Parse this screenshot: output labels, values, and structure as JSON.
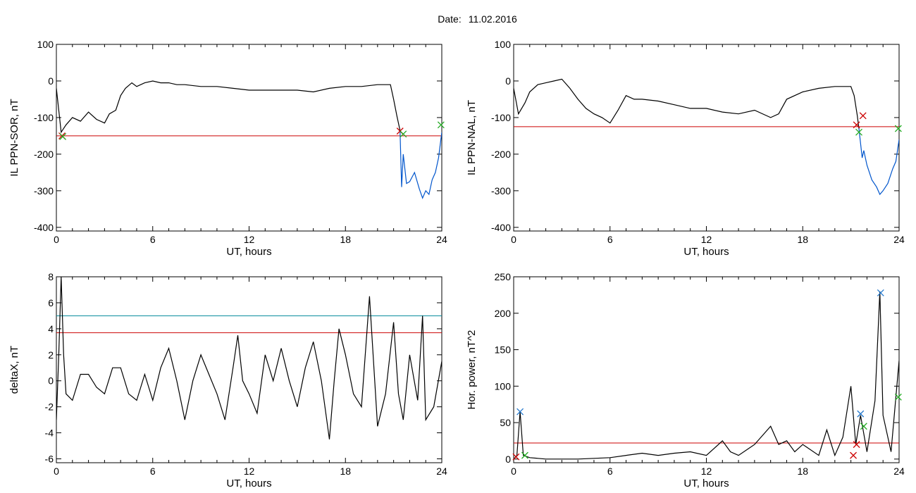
{
  "header": {
    "date_label": "Date:",
    "date_value": "11.02.2016"
  },
  "chart_data": [
    {
      "id": "p1",
      "type": "line",
      "xlabel": "UT, hours",
      "ylabel": "IL PPN-SOR, nT",
      "xlim": [
        0,
        24
      ],
      "ylim": [
        -410,
        100
      ],
      "xticks": [
        0,
        6,
        12,
        18,
        24
      ],
      "yticks": [
        100,
        0,
        -100,
        -200,
        -300,
        -400
      ],
      "series": [
        {
          "color": "#000000",
          "points": [
            [
              0,
              -20
            ],
            [
              0.3,
              -140
            ],
            [
              0.6,
              -120
            ],
            [
              1,
              -100
            ],
            [
              1.5,
              -110
            ],
            [
              2,
              -85
            ],
            [
              2.5,
              -105
            ],
            [
              3,
              -115
            ],
            [
              3.3,
              -90
            ],
            [
              3.7,
              -80
            ],
            [
              4,
              -40
            ],
            [
              4.3,
              -20
            ],
            [
              4.7,
              -5
            ],
            [
              5,
              -15
            ],
            [
              5.5,
              -5
            ],
            [
              6,
              0
            ],
            [
              6.5,
              -5
            ],
            [
              7,
              -5
            ],
            [
              7.5,
              -10
            ],
            [
              8,
              -10
            ],
            [
              9,
              -15
            ],
            [
              10,
              -15
            ],
            [
              11,
              -20
            ],
            [
              12,
              -25
            ],
            [
              13,
              -25
            ],
            [
              14,
              -25
            ],
            [
              15,
              -25
            ],
            [
              16,
              -30
            ],
            [
              17,
              -20
            ],
            [
              18,
              -15
            ],
            [
              19,
              -15
            ],
            [
              20,
              -10
            ],
            [
              20.8,
              -10
            ],
            [
              21,
              -50
            ],
            [
              21.2,
              -95
            ],
            [
              21.4,
              -135
            ]
          ]
        },
        {
          "color": "#0055cc",
          "points": [
            [
              21.4,
              -135
            ],
            [
              21.5,
              -290
            ],
            [
              21.6,
              -200
            ],
            [
              21.8,
              -280
            ],
            [
              22,
              -275
            ],
            [
              22.3,
              -250
            ],
            [
              22.6,
              -295
            ],
            [
              22.8,
              -320
            ],
            [
              23,
              -300
            ],
            [
              23.2,
              -310
            ],
            [
              23.4,
              -270
            ],
            [
              23.6,
              -250
            ],
            [
              23.8,
              -210
            ],
            [
              24,
              -140
            ]
          ]
        }
      ],
      "hlines": [
        {
          "value": -150,
          "color": "#cc0000"
        }
      ],
      "markers": [
        {
          "x": 0.35,
          "y": -150,
          "color": "#cc0000"
        },
        {
          "x": 0.4,
          "y": -152,
          "color": "#22aa22"
        },
        {
          "x": 21.4,
          "y": -137,
          "color": "#cc0000"
        },
        {
          "x": 21.6,
          "y": -145,
          "color": "#22aa22"
        },
        {
          "x": 23.95,
          "y": -120,
          "color": "#22aa22"
        }
      ]
    },
    {
      "id": "p2",
      "type": "line",
      "xlabel": "UT, hours",
      "ylabel": "IL PPN-NAL, nT",
      "xlim": [
        0,
        24
      ],
      "ylim": [
        -410,
        100
      ],
      "xticks": [
        0,
        6,
        12,
        18,
        24
      ],
      "yticks": [
        100,
        0,
        -100,
        -200,
        -300,
        -400
      ],
      "series": [
        {
          "color": "#000000",
          "points": [
            [
              0,
              -20
            ],
            [
              0.3,
              -90
            ],
            [
              0.7,
              -60
            ],
            [
              1,
              -30
            ],
            [
              1.5,
              -10
            ],
            [
              2,
              -5
            ],
            [
              2.5,
              0
            ],
            [
              3,
              5
            ],
            [
              3.5,
              -20
            ],
            [
              4,
              -50
            ],
            [
              4.5,
              -75
            ],
            [
              5,
              -90
            ],
            [
              5.5,
              -100
            ],
            [
              6,
              -115
            ],
            [
              6.5,
              -80
            ],
            [
              7,
              -40
            ],
            [
              7.5,
              -50
            ],
            [
              8,
              -50
            ],
            [
              9,
              -55
            ],
            [
              10,
              -65
            ],
            [
              11,
              -75
            ],
            [
              12,
              -75
            ],
            [
              13,
              -85
            ],
            [
              14,
              -90
            ],
            [
              15,
              -80
            ],
            [
              16,
              -100
            ],
            [
              16.5,
              -90
            ],
            [
              17,
              -50
            ],
            [
              18,
              -30
            ],
            [
              19,
              -20
            ],
            [
              20,
              -15
            ],
            [
              21,
              -15
            ],
            [
              21.2,
              -40
            ],
            [
              21.4,
              -95
            ],
            [
              21.5,
              -130
            ]
          ]
        },
        {
          "color": "#0055cc",
          "points": [
            [
              21.5,
              -130
            ],
            [
              21.7,
              -210
            ],
            [
              21.8,
              -190
            ],
            [
              22,
              -230
            ],
            [
              22.3,
              -270
            ],
            [
              22.6,
              -290
            ],
            [
              22.8,
              -310
            ],
            [
              23,
              -300
            ],
            [
              23.3,
              -280
            ],
            [
              23.6,
              -240
            ],
            [
              23.8,
              -220
            ],
            [
              24,
              -160
            ]
          ]
        }
      ],
      "hlines": [
        {
          "value": -125,
          "color": "#cc0000"
        }
      ],
      "markers": [
        {
          "x": 21.35,
          "y": -120,
          "color": "#cc0000"
        },
        {
          "x": 21.5,
          "y": -140,
          "color": "#22aa22"
        },
        {
          "x": 21.75,
          "y": -95,
          "color": "#cc0000"
        },
        {
          "x": 23.95,
          "y": -130,
          "color": "#22aa22"
        }
      ]
    },
    {
      "id": "p3",
      "type": "line",
      "xlabel": "UT, hours",
      "ylabel": "deltaX, nT",
      "xlim": [
        0,
        24
      ],
      "ylim": [
        -6.3,
        8
      ],
      "xticks": [
        0,
        6,
        12,
        18,
        24
      ],
      "yticks": [
        8,
        6,
        4,
        2,
        0,
        -2,
        -4,
        -6
      ],
      "series": [
        {
          "color": "#000000",
          "points": [
            [
              0,
              -3
            ],
            [
              0.15,
              2
            ],
            [
              0.3,
              8
            ],
            [
              0.45,
              2
            ],
            [
              0.6,
              -1
            ],
            [
              1,
              -1.5
            ],
            [
              1.5,
              0.5
            ],
            [
              2,
              0.5
            ],
            [
              2.5,
              -0.5
            ],
            [
              3,
              -1
            ],
            [
              3.5,
              1
            ],
            [
              4,
              1
            ],
            [
              4.5,
              -1
            ],
            [
              5,
              -1.5
            ],
            [
              5.5,
              0.5
            ],
            [
              6,
              -1.5
            ],
            [
              6.5,
              1
            ],
            [
              7,
              2.5
            ],
            [
              7.5,
              0
            ],
            [
              8,
              -3
            ],
            [
              8.5,
              0
            ],
            [
              9,
              2
            ],
            [
              9.5,
              0.5
            ],
            [
              10,
              -1
            ],
            [
              10.5,
              -3
            ],
            [
              11,
              1
            ],
            [
              11.3,
              3.5
            ],
            [
              11.6,
              0
            ],
            [
              12,
              -1
            ],
            [
              12.5,
              -2.5
            ],
            [
              13,
              2
            ],
            [
              13.5,
              0
            ],
            [
              14,
              2.5
            ],
            [
              14.5,
              0
            ],
            [
              15,
              -2
            ],
            [
              15.5,
              1
            ],
            [
              16,
              3
            ],
            [
              16.5,
              0
            ],
            [
              17,
              -4.5
            ],
            [
              17.3,
              0
            ],
            [
              17.6,
              4
            ],
            [
              18,
              2
            ],
            [
              18.5,
              -1
            ],
            [
              19,
              -2
            ],
            [
              19.5,
              6.5
            ],
            [
              20,
              -3.5
            ],
            [
              20.5,
              -1
            ],
            [
              21,
              4.5
            ],
            [
              21.3,
              -1
            ],
            [
              21.6,
              -3
            ],
            [
              22,
              2
            ],
            [
              22.5,
              -1.5
            ],
            [
              22.8,
              5
            ],
            [
              23,
              -3
            ],
            [
              23.5,
              -2
            ],
            [
              24,
              1.5
            ]
          ]
        }
      ],
      "hlines": [
        {
          "value": 5,
          "color": "#008899"
        },
        {
          "value": 3.7,
          "color": "#cc0000"
        }
      ],
      "markers": []
    },
    {
      "id": "p4",
      "type": "line",
      "xlabel": "UT, hours",
      "ylabel": "Hor. power, nT^2",
      "xlim": [
        0,
        24
      ],
      "ylim": [
        -5,
        250
      ],
      "xticks": [
        0,
        6,
        12,
        18,
        24
      ],
      "yticks": [
        250,
        200,
        150,
        100,
        50,
        0
      ],
      "series": [
        {
          "color": "#000000",
          "points": [
            [
              0,
              0
            ],
            [
              0.2,
              5
            ],
            [
              0.4,
              65
            ],
            [
              0.6,
              5
            ],
            [
              1,
              2
            ],
            [
              2,
              0
            ],
            [
              3,
              0
            ],
            [
              4,
              0
            ],
            [
              5,
              1
            ],
            [
              6,
              2
            ],
            [
              7,
              5
            ],
            [
              8,
              8
            ],
            [
              9,
              5
            ],
            [
              10,
              8
            ],
            [
              11,
              10
            ],
            [
              12,
              5
            ],
            [
              12.5,
              15
            ],
            [
              13,
              25
            ],
            [
              13.5,
              10
            ],
            [
              14,
              5
            ],
            [
              15,
              20
            ],
            [
              16,
              45
            ],
            [
              16.5,
              20
            ],
            [
              17,
              25
            ],
            [
              17.5,
              10
            ],
            [
              18,
              20
            ],
            [
              19,
              5
            ],
            [
              19.5,
              40
            ],
            [
              20,
              5
            ],
            [
              20.5,
              30
            ],
            [
              21,
              100
            ],
            [
              21.3,
              20
            ],
            [
              21.6,
              60
            ],
            [
              22,
              10
            ],
            [
              22.5,
              80
            ],
            [
              22.8,
              230
            ],
            [
              23,
              60
            ],
            [
              23.5,
              10
            ],
            [
              24,
              135
            ]
          ]
        }
      ],
      "hlines": [
        {
          "value": 22,
          "color": "#cc0000"
        }
      ],
      "markers": [
        {
          "x": 0.4,
          "y": 65,
          "color": "#2277cc"
        },
        {
          "x": 0.15,
          "y": 3,
          "color": "#cc0000"
        },
        {
          "x": 0.7,
          "y": 5,
          "color": "#22aa22"
        },
        {
          "x": 21.15,
          "y": 5,
          "color": "#cc0000"
        },
        {
          "x": 21.35,
          "y": 20,
          "color": "#cc0000"
        },
        {
          "x": 21.6,
          "y": 62,
          "color": "#2277cc"
        },
        {
          "x": 21.8,
          "y": 45,
          "color": "#22aa22"
        },
        {
          "x": 22.85,
          "y": 228,
          "color": "#2277cc"
        },
        {
          "x": 23.95,
          "y": 85,
          "color": "#22aa22"
        }
      ]
    }
  ]
}
